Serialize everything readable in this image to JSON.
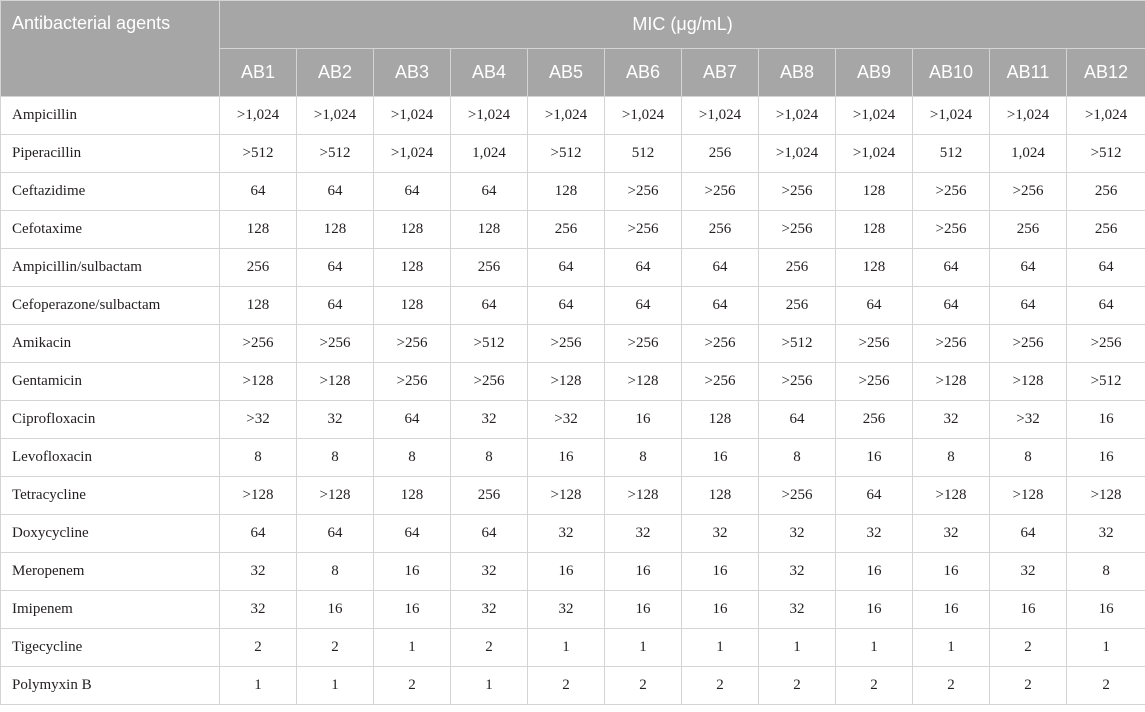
{
  "table": {
    "first_header": "Antibacterial agents",
    "group_header": "MIC (μg/mL)",
    "isolates": [
      "AB1",
      "AB2",
      "AB3",
      "AB4",
      "AB5",
      "AB6",
      "AB7",
      "AB8",
      "AB9",
      "AB10",
      "AB11",
      "AB12"
    ],
    "rows": [
      {
        "agent": "Ampicillin",
        "values": [
          ">1,024",
          ">1,024",
          ">1,024",
          ">1,024",
          ">1,024",
          ">1,024",
          ">1,024",
          ">1,024",
          ">1,024",
          ">1,024",
          ">1,024",
          ">1,024"
        ]
      },
      {
        "agent": "Piperacillin",
        "values": [
          ">512",
          ">512",
          ">1,024",
          "1,024",
          ">512",
          "512",
          "256",
          ">1,024",
          ">1,024",
          "512",
          "1,024",
          ">512"
        ]
      },
      {
        "agent": "Ceftazidime",
        "values": [
          "64",
          "64",
          "64",
          "64",
          "128",
          ">256",
          ">256",
          ">256",
          "128",
          ">256",
          ">256",
          "256"
        ]
      },
      {
        "agent": "Cefotaxime",
        "values": [
          "128",
          "128",
          "128",
          "128",
          "256",
          ">256",
          "256",
          ">256",
          "128",
          ">256",
          "256",
          "256"
        ]
      },
      {
        "agent": "Ampicillin/sulbactam",
        "values": [
          "256",
          "64",
          "128",
          "256",
          "64",
          "64",
          "64",
          "256",
          "128",
          "64",
          "64",
          "64"
        ]
      },
      {
        "agent": "Cefoperazone/sulbactam",
        "values": [
          "128",
          "64",
          "128",
          "64",
          "64",
          "64",
          "64",
          "256",
          "64",
          "64",
          "64",
          "64"
        ]
      },
      {
        "agent": "Amikacin",
        "values": [
          ">256",
          ">256",
          ">256",
          ">512",
          ">256",
          ">256",
          ">256",
          ">512",
          ">256",
          ">256",
          ">256",
          ">256"
        ]
      },
      {
        "agent": "Gentamicin",
        "values": [
          ">128",
          ">128",
          ">256",
          ">256",
          ">128",
          ">128",
          ">256",
          ">256",
          ">256",
          ">128",
          ">128",
          ">512"
        ]
      },
      {
        "agent": "Ciprofloxacin",
        "values": [
          ">32",
          "32",
          "64",
          "32",
          ">32",
          "16",
          "128",
          "64",
          "256",
          "32",
          ">32",
          "16"
        ]
      },
      {
        "agent": "Levofloxacin",
        "values": [
          "8",
          "8",
          "8",
          "8",
          "16",
          "8",
          "16",
          "8",
          "16",
          "8",
          "8",
          "16"
        ]
      },
      {
        "agent": "Tetracycline",
        "values": [
          ">128",
          ">128",
          "128",
          "256",
          ">128",
          ">128",
          "128",
          ">256",
          "64",
          ">128",
          ">128",
          ">128"
        ]
      },
      {
        "agent": "Doxycycline",
        "values": [
          "64",
          "64",
          "64",
          "64",
          "32",
          "32",
          "32",
          "32",
          "32",
          "32",
          "64",
          "32"
        ]
      },
      {
        "agent": "Meropenem",
        "values": [
          "32",
          "8",
          "16",
          "32",
          "16",
          "16",
          "16",
          "32",
          "16",
          "16",
          "32",
          "8"
        ]
      },
      {
        "agent": "Imipenem",
        "values": [
          "32",
          "16",
          "16",
          "32",
          "32",
          "16",
          "16",
          "32",
          "16",
          "16",
          "16",
          "16"
        ]
      },
      {
        "agent": "Tigecycline",
        "values": [
          "2",
          "2",
          "1",
          "2",
          "1",
          "1",
          "1",
          "1",
          "1",
          "1",
          "2",
          "1"
        ]
      },
      {
        "agent": "Polymyxin B",
        "values": [
          "1",
          "1",
          "2",
          "1",
          "2",
          "2",
          "2",
          "2",
          "2",
          "2",
          "2",
          "2"
        ]
      }
    ]
  }
}
